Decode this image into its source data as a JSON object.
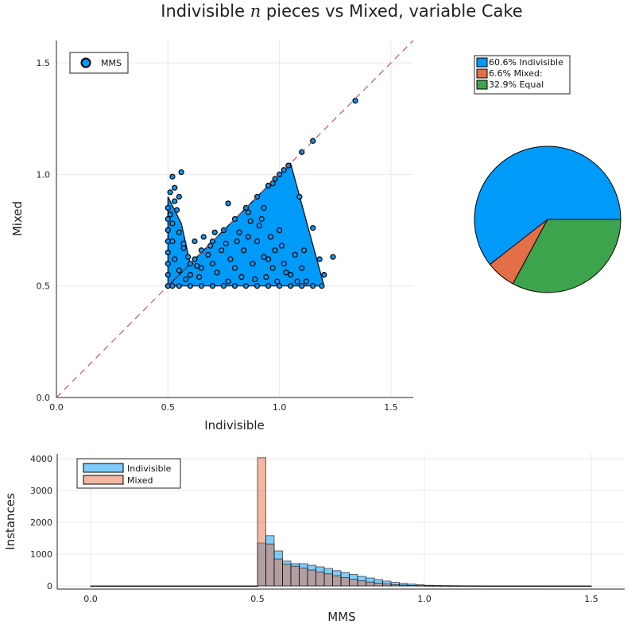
{
  "title": "Indivisible n pieces vs Mixed, variable Cake",
  "title_parts": {
    "before": "Indivisible ",
    "var": "n",
    "after": " pieces vs Mixed, variable Cake"
  },
  "chart_data": [
    {
      "type": "scatter",
      "xlabel": "Indivisible",
      "ylabel": "Mixed",
      "xlim": [
        0,
        1.6
      ],
      "ylim": [
        0,
        1.6
      ],
      "xticks": [
        "0.0",
        "0.5",
        "1.0",
        "1.5"
      ],
      "yticks": [
        "0.0",
        "0.5",
        "1.0",
        "1.5"
      ],
      "grid": true,
      "legend_position": "top-left",
      "series": [
        {
          "name": "MMS",
          "color": "#009af9"
        }
      ],
      "reference_line": {
        "style": "dashed",
        "color": "#e6261f",
        "from": [
          0,
          0
        ],
        "to": [
          1.6,
          1.6
        ]
      },
      "points": [
        [
          0.5,
          0.5
        ],
        [
          0.52,
          0.5
        ],
        [
          0.55,
          0.5
        ],
        [
          0.6,
          0.5
        ],
        [
          0.65,
          0.5
        ],
        [
          0.7,
          0.5
        ],
        [
          0.75,
          0.5
        ],
        [
          0.8,
          0.5
        ],
        [
          0.85,
          0.5
        ],
        [
          0.9,
          0.5
        ],
        [
          0.95,
          0.5
        ],
        [
          1.0,
          0.5
        ],
        [
          1.05,
          0.5
        ],
        [
          1.1,
          0.5
        ],
        [
          1.15,
          0.5
        ],
        [
          1.19,
          0.5
        ],
        [
          0.5,
          0.55
        ],
        [
          0.5,
          0.6
        ],
        [
          0.5,
          0.65
        ],
        [
          0.5,
          0.7
        ],
        [
          0.5,
          0.75
        ],
        [
          0.5,
          0.8
        ],
        [
          0.5,
          0.85
        ],
        [
          0.51,
          0.92
        ],
        [
          0.52,
          0.99
        ],
        [
          0.56,
          1.01
        ],
        [
          0.53,
          0.94
        ],
        [
          0.55,
          0.9
        ],
        [
          0.54,
          0.84
        ],
        [
          0.52,
          0.78
        ],
        [
          0.55,
          0.74
        ],
        [
          0.57,
          0.67
        ],
        [
          0.6,
          0.6
        ],
        [
          0.62,
          0.62
        ],
        [
          0.65,
          0.66
        ],
        [
          0.7,
          0.7
        ],
        [
          0.75,
          0.75
        ],
        [
          0.8,
          0.8
        ],
        [
          0.85,
          0.85
        ],
        [
          0.9,
          0.9
        ],
        [
          0.95,
          0.95
        ],
        [
          0.98,
          0.98
        ],
        [
          1.0,
          1.0
        ],
        [
          1.02,
          1.02
        ],
        [
          1.04,
          1.04
        ],
        [
          1.1,
          1.1
        ],
        [
          1.15,
          1.15
        ],
        [
          1.34,
          1.33
        ],
        [
          0.6,
          0.55
        ],
        [
          0.65,
          0.58
        ],
        [
          0.7,
          0.6
        ],
        [
          0.72,
          0.56
        ],
        [
          0.78,
          0.62
        ],
        [
          0.8,
          0.58
        ],
        [
          0.84,
          0.66
        ],
        [
          0.86,
          0.72
        ],
        [
          0.88,
          0.6
        ],
        [
          0.9,
          0.7
        ],
        [
          0.92,
          0.8
        ],
        [
          0.95,
          0.62
        ],
        [
          0.98,
          0.66
        ],
        [
          1.0,
          0.75
        ],
        [
          1.02,
          0.6
        ],
        [
          1.05,
          0.55
        ],
        [
          1.07,
          0.64
        ],
        [
          1.1,
          0.58
        ],
        [
          1.12,
          0.52
        ],
        [
          1.15,
          0.76
        ],
        [
          1.18,
          0.62
        ],
        [
          1.2,
          0.55
        ],
        [
          1.24,
          0.63
        ],
        [
          1.09,
          0.9
        ],
        [
          0.97,
          0.96
        ],
        [
          0.93,
          0.85
        ],
        [
          0.87,
          0.79
        ],
        [
          0.82,
          0.74
        ],
        [
          0.76,
          0.69
        ],
        [
          0.68,
          0.64
        ],
        [
          0.63,
          0.59
        ],
        [
          0.58,
          0.53
        ],
        [
          0.55,
          0.57
        ],
        [
          0.53,
          0.62
        ],
        [
          0.57,
          0.69
        ],
        [
          0.62,
          0.7
        ],
        [
          0.66,
          0.72
        ],
        [
          0.71,
          0.74
        ],
        [
          0.74,
          0.66
        ],
        [
          0.77,
          0.52
        ],
        [
          0.83,
          0.54
        ],
        [
          0.89,
          0.53
        ],
        [
          0.94,
          0.54
        ],
        [
          0.99,
          0.52
        ],
        [
          1.03,
          0.56
        ],
        [
          1.08,
          0.52
        ],
        [
          0.77,
          0.87
        ],
        [
          0.86,
          0.83
        ],
        [
          0.91,
          0.77
        ],
        [
          0.96,
          0.72
        ],
        [
          0.81,
          0.7
        ],
        [
          0.69,
          0.68
        ],
        [
          0.64,
          0.54
        ],
        [
          0.59,
          0.63
        ],
        [
          0.52,
          0.7
        ],
        [
          0.51,
          0.82
        ],
        [
          0.53,
          0.88
        ],
        [
          0.93,
          0.63
        ],
        [
          0.97,
          0.58
        ],
        [
          1.01,
          0.68
        ],
        [
          1.11,
          0.66
        ]
      ]
    },
    {
      "type": "pie",
      "legend_position": "top-right",
      "slices": [
        {
          "label": "60.6% Indivisible",
          "value": 60.6,
          "color": "#009af9"
        },
        {
          "label": "6.6% Mixed:",
          "value": 6.6,
          "color": "#e26f46"
        },
        {
          "label": "32.9% Equal",
          "value": 32.9,
          "color": "#3da44d"
        }
      ]
    },
    {
      "type": "bar",
      "subtype": "histogram",
      "xlabel": "MMS",
      "ylabel": "Instances",
      "xlim": [
        -0.1,
        1.6
      ],
      "ylim": [
        -100,
        4150
      ],
      "xticks": [
        "0.0",
        "0.5",
        "1.0",
        "1.5"
      ],
      "yticks": [
        "0",
        "1000",
        "2000",
        "3000",
        "4000"
      ],
      "grid": true,
      "legend_position": "top-left",
      "bin_edges": [
        0.0,
        0.025,
        0.05,
        0.075,
        0.1,
        0.125,
        0.15,
        0.175,
        0.2,
        0.225,
        0.25,
        0.275,
        0.3,
        0.325,
        0.35,
        0.375,
        0.4,
        0.425,
        0.45,
        0.475,
        0.5,
        0.525,
        0.55,
        0.575,
        0.6,
        0.625,
        0.65,
        0.675,
        0.7,
        0.725,
        0.75,
        0.775,
        0.8,
        0.825,
        0.85,
        0.875,
        0.9,
        0.925,
        0.95,
        0.975,
        1.0,
        1.025,
        1.05,
        1.075,
        1.1,
        1.125,
        1.15,
        1.175,
        1.2,
        1.225,
        1.25,
        1.275,
        1.3,
        1.325,
        1.35,
        1.375,
        1.4,
        1.425,
        1.45,
        1.475,
        1.5
      ],
      "series": [
        {
          "name": "Indivisible",
          "color": "#009af9",
          "values": [
            0,
            0,
            0,
            0,
            0,
            0,
            0,
            0,
            0,
            0,
            0,
            0,
            0,
            0,
            0,
            0,
            0,
            0,
            0,
            0,
            1350,
            1580,
            1100,
            780,
            700,
            700,
            650,
            600,
            550,
            480,
            420,
            360,
            300,
            250,
            200,
            150,
            110,
            80,
            55,
            35,
            20,
            15,
            10,
            8,
            5,
            4,
            3,
            2,
            2,
            1,
            1,
            1,
            1,
            1,
            0,
            0,
            0,
            0,
            0,
            0
          ]
        },
        {
          "name": "Mixed",
          "color": "#e26f46",
          "values": [
            0,
            0,
            0,
            0,
            0,
            0,
            0,
            0,
            0,
            0,
            0,
            0,
            0,
            0,
            0,
            0,
            0,
            0,
            0,
            0,
            4030,
            1320,
            850,
            680,
            620,
            560,
            500,
            440,
            380,
            320,
            260,
            210,
            160,
            120,
            90,
            60,
            40,
            25,
            15,
            10,
            6,
            4,
            3,
            2,
            1,
            1,
            1,
            0,
            0,
            0,
            0,
            0,
            0,
            0,
            0,
            0,
            0,
            0,
            0,
            0
          ]
        }
      ]
    }
  ]
}
